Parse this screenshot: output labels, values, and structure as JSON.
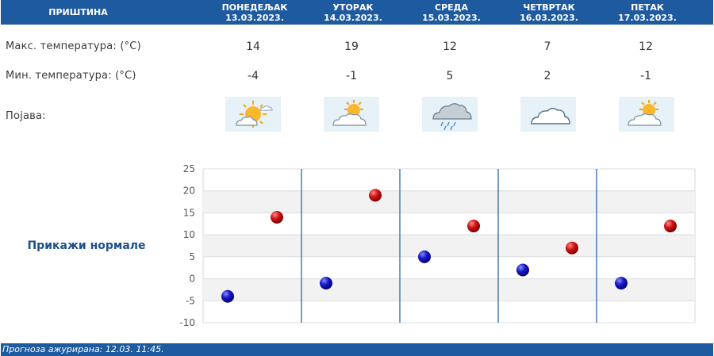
{
  "header": {
    "city": "ПРИШТИНА",
    "days": [
      {
        "name": "ПОНЕДЕЉАК",
        "date": "13.03.2023."
      },
      {
        "name": "УТОРАК",
        "date": "14.03.2023."
      },
      {
        "name": "СРЕДА",
        "date": "15.03.2023."
      },
      {
        "name": "ЧЕТВРТАК",
        "date": "16.03.2023."
      },
      {
        "name": "ПЕТАК",
        "date": "17.03.2023."
      }
    ]
  },
  "rows": {
    "max_label": "Макс. температура: (°C)",
    "min_label": "Мин. температура: (°C)",
    "phenomenon_label": "Појава:",
    "max": [
      "14",
      "19",
      "12",
      "7",
      "12"
    ],
    "min": [
      "-4",
      "-1",
      "5",
      "2",
      "-1"
    ],
    "icons": [
      "sun-cloud-icon",
      "cloud-sun-icon",
      "cloud-rain-icon",
      "cloud-icon",
      "cloud-sun-icon"
    ]
  },
  "show_normals": "Прикажи нормале",
  "footer": {
    "text": "Прогноза ажурирана:  12.03. 11:45."
  },
  "colors": {
    "header_bg": "#1e5aa0",
    "max_point": "#d21414",
    "min_point": "#1818c8",
    "separator": "#1e5aa0"
  },
  "chart_data": {
    "type": "scatter",
    "categories": [
      "ПОНЕДЕЉАК",
      "УТОРАК",
      "СРЕДА",
      "ЧЕТВРТАК",
      "ПЕТАК"
    ],
    "series": [
      {
        "values": [
          -4,
          -1,
          5,
          2,
          -1
        ]
      },
      {
        "values": [
          14,
          19,
          12,
          7,
          12
        ]
      }
    ],
    "yticks": [
      "25",
      "20",
      "15",
      "10",
      "5",
      "0",
      "-5",
      "-10"
    ],
    "ylim": [
      -10,
      25
    ],
    "grid": true
  }
}
